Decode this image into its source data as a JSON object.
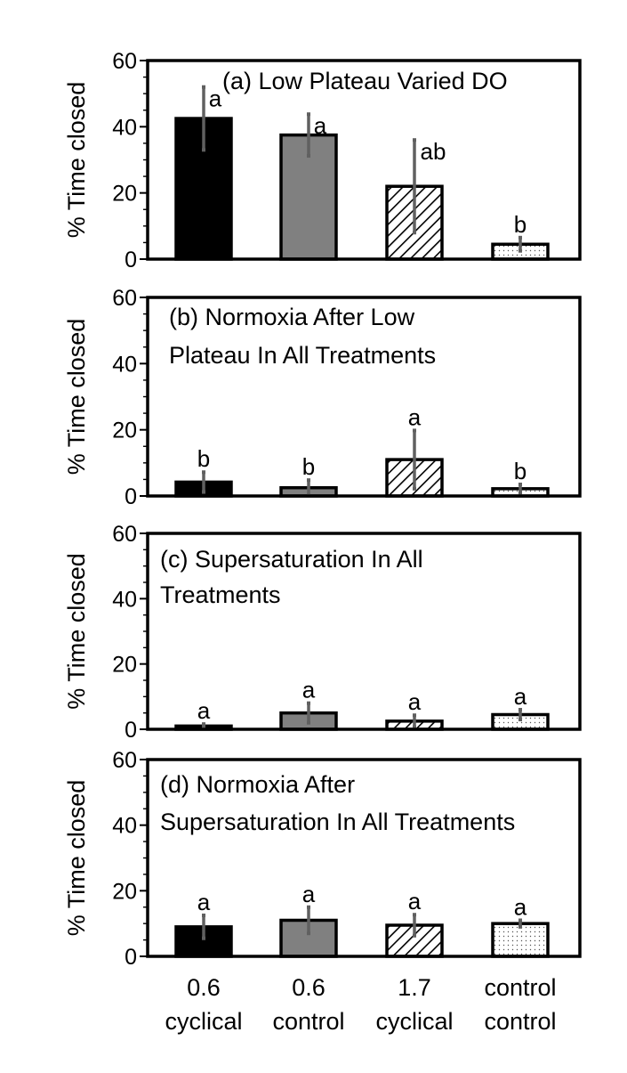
{
  "chart_data": [
    {
      "type": "bar",
      "title": "(a) Low Plateau Varied DO",
      "title_lines": [
        "(a) Low Plateau Varied DO"
      ],
      "ylabel": "% Time closed",
      "ylim": [
        0,
        60
      ],
      "yticks": [
        "0",
        "20",
        "40",
        "60"
      ],
      "categories": [
        "0.6 cyclical",
        "0.6 control",
        "1.7 cyclical",
        "control control"
      ],
      "values": [
        42.5,
        37.5,
        22,
        4.5
      ],
      "errors": [
        9.5,
        6.3,
        14,
        2
      ],
      "letters": [
        "a",
        "a",
        "ab",
        "b"
      ]
    },
    {
      "type": "bar",
      "title": "(b) Normoxia After Low Plateau In All Treatments",
      "title_lines": [
        "(b) Normoxia After Low",
        "Plateau In All Treatments"
      ],
      "ylabel": "% Time closed",
      "ylim": [
        0,
        60
      ],
      "yticks": [
        "0",
        "20",
        "40",
        "60"
      ],
      "categories": [
        "0.6 cyclical",
        "0.6 control",
        "1.7 cyclical",
        "control control"
      ],
      "values": [
        4.2,
        2.5,
        11,
        2.2
      ],
      "errors": [
        3,
        2.3,
        8.8,
        1.3
      ],
      "letters": [
        "b",
        "b",
        "a",
        "b"
      ]
    },
    {
      "type": "bar",
      "title": "(c) Supersaturation In All Treatments",
      "title_lines": [
        "(c) Supersaturation In All",
        "Treatments"
      ],
      "ylabel": "% Time closed",
      "ylim": [
        0,
        60
      ],
      "yticks": [
        "0",
        "20",
        "40",
        "60"
      ],
      "categories": [
        "0.6 cyclical",
        "0.6 control",
        "1.7 cyclical",
        "control control"
      ],
      "values": [
        1,
        5,
        2.5,
        4.5
      ],
      "errors": [
        0.6,
        3,
        1.8,
        1.5
      ],
      "letters": [
        "a",
        "a",
        "a",
        "a"
      ]
    },
    {
      "type": "bar",
      "title": "(d) Normoxia After Supersaturation In All Treatments",
      "title_lines": [
        "(d) Normoxia After",
        "Supersaturation In All Treatments"
      ],
      "ylabel": "% Time closed",
      "ylim": [
        0,
        60
      ],
      "yticks": [
        "0",
        "20",
        "40",
        "60"
      ],
      "categories": [
        "0.6 cyclical",
        "0.6 control",
        "1.7 cyclical",
        "control control"
      ],
      "values": [
        9,
        11,
        9.5,
        10
      ],
      "errors": [
        3.5,
        4,
        3.2,
        1
      ],
      "letters": [
        "a",
        "a",
        "a",
        "a"
      ]
    }
  ],
  "x_axis": {
    "labels": [
      {
        "line1": "0.6",
        "line2": "cyclical"
      },
      {
        "line1": "0.6",
        "line2": "control"
      },
      {
        "line1": "1.7",
        "line2": "cyclical"
      },
      {
        "line1": "control",
        "line2": "control"
      }
    ]
  },
  "series_styles": [
    {
      "fill": "#000000",
      "pattern": "solid"
    },
    {
      "fill": "#808080",
      "pattern": "solid"
    },
    {
      "fill": "#ffffff",
      "pattern": "diagonal-hatch"
    },
    {
      "fill": "#ffffff",
      "pattern": "dots"
    }
  ]
}
